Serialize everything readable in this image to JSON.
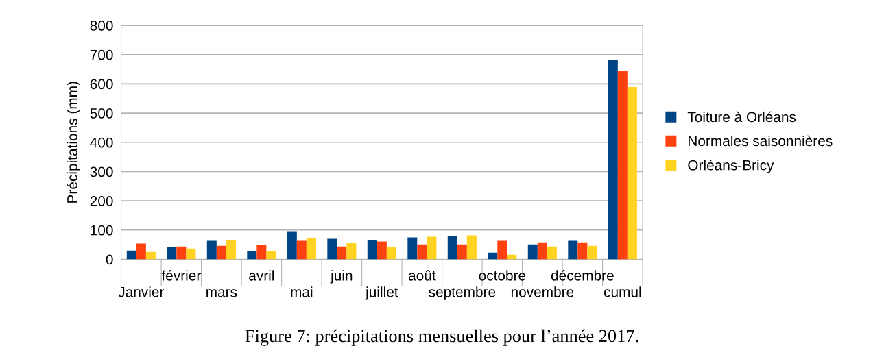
{
  "chart_data": {
    "type": "bar",
    "ylabel": "Précipitations (mm)",
    "categories": [
      "Janvier",
      "février",
      "mars",
      "avril",
      "mai",
      "juin",
      "juillet",
      "août",
      "septembre",
      "octobre",
      "novembre",
      "décembre",
      "cumul"
    ],
    "series": [
      {
        "name": "Toiture à Orléans",
        "color": "#004586",
        "values": [
          30,
          42,
          63,
          28,
          96,
          70,
          65,
          75,
          80,
          23,
          51,
          63,
          683
        ]
      },
      {
        "name": "Normales saisonnières",
        "color": "#ff420e",
        "values": [
          54,
          44,
          46,
          49,
          63,
          44,
          61,
          51,
          51,
          63,
          58,
          58,
          645
        ]
      },
      {
        "name": "Orléans-Bricy",
        "color": "#ffd320",
        "values": [
          25,
          37,
          65,
          28,
          72,
          56,
          42,
          77,
          82,
          16,
          44,
          46,
          589
        ]
      }
    ],
    "ylim": [
      0,
      800
    ],
    "yticks": [
      0,
      100,
      200,
      300,
      400,
      500,
      600,
      700,
      800
    ],
    "grid": "y",
    "legend": "right",
    "annotations": [
      "Figure 7: précipitations mensuelles pour l’année 2017."
    ]
  }
}
